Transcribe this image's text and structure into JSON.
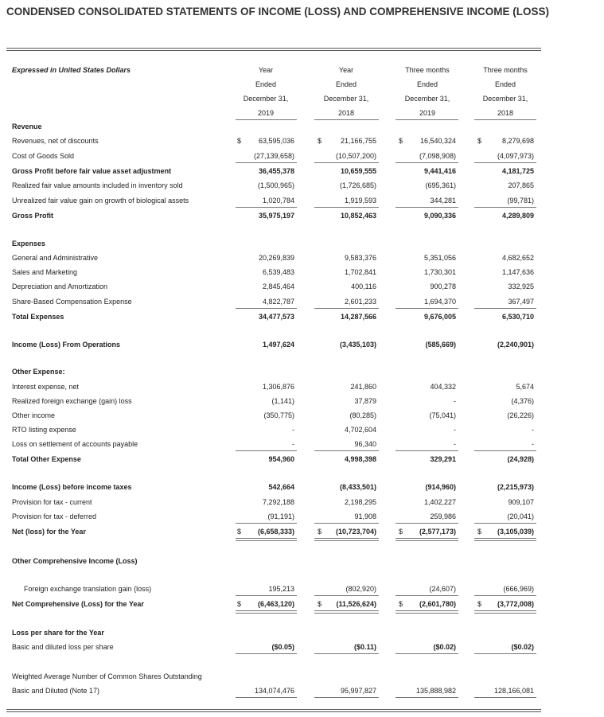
{
  "title": "CONDENSED CONSOLIDATED STATEMENTS OF INCOME (LOSS) AND COMPREHENSIVE INCOME (LOSS)",
  "table": {
    "header": {
      "label": "Expressed in United States Dollars",
      "columns": [
        [
          "Year",
          "Ended",
          "December 31,",
          "2019"
        ],
        [
          "Year",
          "Ended",
          "December 31,",
          "2018"
        ],
        [
          "Three months",
          "Ended",
          "December 31,",
          "2019"
        ],
        [
          "Three months",
          "Ended",
          "December 31,",
          "2018"
        ]
      ]
    },
    "rows": [
      {
        "label": "Revenue"
      },
      {
        "label": "Revenues, net of discounts",
        "currency": [
          "$",
          "$",
          "$",
          "$"
        ],
        "values": [
          "63,595,036",
          "21,166,755",
          "16,540,324",
          "8,279,698"
        ]
      },
      {
        "label": "Cost of Goods Sold",
        "values": [
          "(27,139,658)",
          "(10,507,200)",
          "(7,098,908)",
          "(4,097,973)"
        ]
      },
      {
        "label": "Gross Profit before fair value asset adjustment",
        "values": [
          "36,455,378",
          "10,659,555",
          "9,441,416",
          "4,181,725"
        ]
      },
      {
        "label": "Realized fair value amounts included in inventory sold",
        "values": [
          "(1,500,965)",
          "(1,726,685)",
          "(695,361)",
          "207,865"
        ]
      },
      {
        "label": "Unrealized fair value gain on growth of biological assets",
        "values": [
          "1,020,784",
          "1,919,593",
          "344,281",
          "(99,781)"
        ]
      },
      {
        "label": "Gross Profit",
        "values": [
          "35,975,197",
          "10,852,463",
          "9,090,336",
          "4,289,809"
        ]
      },
      {
        "label": "Expenses"
      },
      {
        "label": "General and Administrative",
        "values": [
          "20,269,839",
          "9,583,376",
          "5,351,056",
          "4,682,652"
        ]
      },
      {
        "label": "Sales and Marketing",
        "values": [
          "6,539,483",
          "1,702,841",
          "1,730,301",
          "1,147,636"
        ]
      },
      {
        "label": "Depreciation and Amortization",
        "values": [
          "2,845,464",
          "400,116",
          "900,278",
          "332,925"
        ]
      },
      {
        "label": "Share-Based Compensation Expense",
        "values": [
          "4,822,787",
          "2,601,233",
          "1,694,370",
          "367,497"
        ]
      },
      {
        "label": "Total Expenses",
        "values": [
          "34,477,573",
          "14,287,566",
          "9,676,005",
          "6,530,710"
        ]
      },
      {
        "label": "Income (Loss) From Operations",
        "values": [
          "1,497,624",
          "(3,435,103)",
          "(585,669)",
          "(2,240,901)"
        ]
      },
      {
        "label": "Other Expense:"
      },
      {
        "label": "Interest expense, net",
        "values": [
          "1,306,876",
          "241,860",
          "404,332",
          "5,674"
        ]
      },
      {
        "label": "Realized foreign exchange (gain) loss",
        "values": [
          "(1,141)",
          "37,879",
          "-",
          "(4,376)"
        ]
      },
      {
        "label": "Other income",
        "values": [
          "(350,775)",
          "(80,285)",
          "(75,041)",
          "(26,226)"
        ]
      },
      {
        "label": "RTO listing expense",
        "values": [
          "-",
          "4,702,604",
          "-",
          "-"
        ]
      },
      {
        "label": "Loss on settlement of accounts payable",
        "values": [
          "-",
          "96,340",
          "-",
          "-"
        ]
      },
      {
        "label": "Total Other Expense",
        "values": [
          "954,960",
          "4,998,398",
          "329,291",
          "(24,928)"
        ]
      },
      {
        "label": "Income (Loss) before income taxes",
        "values": [
          "542,664",
          "(8,433,501)",
          "(914,960)",
          "(2,215,973)"
        ]
      },
      {
        "label": "Provision for tax - current",
        "values": [
          "7,292,188",
          "2,198,295",
          "1,402,227",
          "909,107"
        ]
      },
      {
        "label": "Provision for tax - deferred",
        "values": [
          "(91,191)",
          "91,908",
          "259,986",
          "(20,041)"
        ]
      },
      {
        "label": "Net (loss) for the Year",
        "currency": [
          "$",
          "$",
          "$",
          "$"
        ],
        "values": [
          "(6,658,333)",
          "(10,723,704)",
          "(2,577,173)",
          "(3,105,039)"
        ]
      },
      {
        "label": "Other Comprehensive Income (Loss)"
      },
      {
        "label": "Foreign exchange translation gain (loss)",
        "values": [
          "195,213",
          "(802,920)",
          "(24,607)",
          "(666,969)"
        ]
      },
      {
        "label": "Net Comprehensive  (Loss) for the Year",
        "currency": [
          "$",
          "$",
          "$",
          "$"
        ],
        "values": [
          "(6,463,120)",
          "(11,526,624)",
          "(2,601,780)",
          "(3,772,008)"
        ]
      },
      {
        "label": "Loss per share for the Year"
      },
      {
        "label": "Basic and diluted loss per share",
        "values": [
          "($0.05)",
          "($0.11)",
          "($0.02)",
          "($0.02)"
        ]
      },
      {
        "label": "Weighted Average Number of Common Shares Outstanding"
      },
      {
        "label": "Basic and Diluted (Note 17)",
        "values": [
          "134,074,476",
          "95,997,827",
          "135,888,982",
          "128,166,081"
        ]
      }
    ]
  }
}
